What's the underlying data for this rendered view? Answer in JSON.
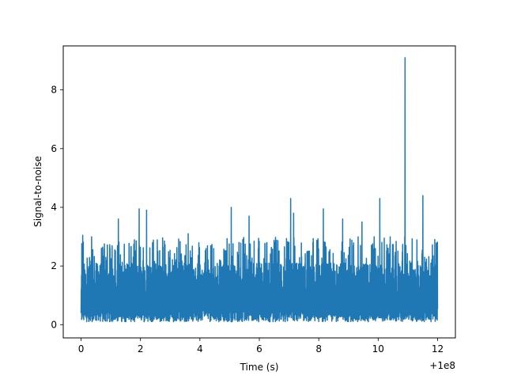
{
  "chart_data": {
    "type": "line",
    "title": "",
    "xlabel": "Time (s)",
    "ylabel": "Signal-to-noise",
    "x_offset_label": "+1e8",
    "xlim": [
      -0.6,
      12.6
    ],
    "ylim": [
      -0.45,
      9.5
    ],
    "x_ticks": [
      0,
      2,
      4,
      6,
      8,
      10,
      12
    ],
    "x_tick_labels": [
      "0",
      "2",
      "4",
      "6",
      "8",
      "10",
      "12"
    ],
    "y_ticks": [
      0,
      2,
      4,
      6,
      8
    ],
    "y_tick_labels": [
      "0",
      "2",
      "4",
      "6",
      "8"
    ],
    "grid": false,
    "legend": "none",
    "series": [
      {
        "color": "#1f77b4",
        "x_range": [
          0,
          12
        ],
        "y_band": [
          0.05,
          3.0
        ],
        "peaks": [
          {
            "x": 0.05,
            "y": 3.05
          },
          {
            "x": 1.25,
            "y": 3.6
          },
          {
            "x": 1.95,
            "y": 3.95
          },
          {
            "x": 2.2,
            "y": 3.9
          },
          {
            "x": 3.6,
            "y": 3.1
          },
          {
            "x": 5.05,
            "y": 4.0
          },
          {
            "x": 5.65,
            "y": 3.7
          },
          {
            "x": 7.05,
            "y": 4.3
          },
          {
            "x": 7.15,
            "y": 3.8
          },
          {
            "x": 8.15,
            "y": 3.95
          },
          {
            "x": 8.8,
            "y": 3.6
          },
          {
            "x": 9.45,
            "y": 3.5
          },
          {
            "x": 10.05,
            "y": 4.3
          },
          {
            "x": 10.9,
            "y": 9.1
          },
          {
            "x": 11.5,
            "y": 4.4
          },
          {
            "x": 11.9,
            "y": 2.9
          }
        ]
      }
    ]
  }
}
